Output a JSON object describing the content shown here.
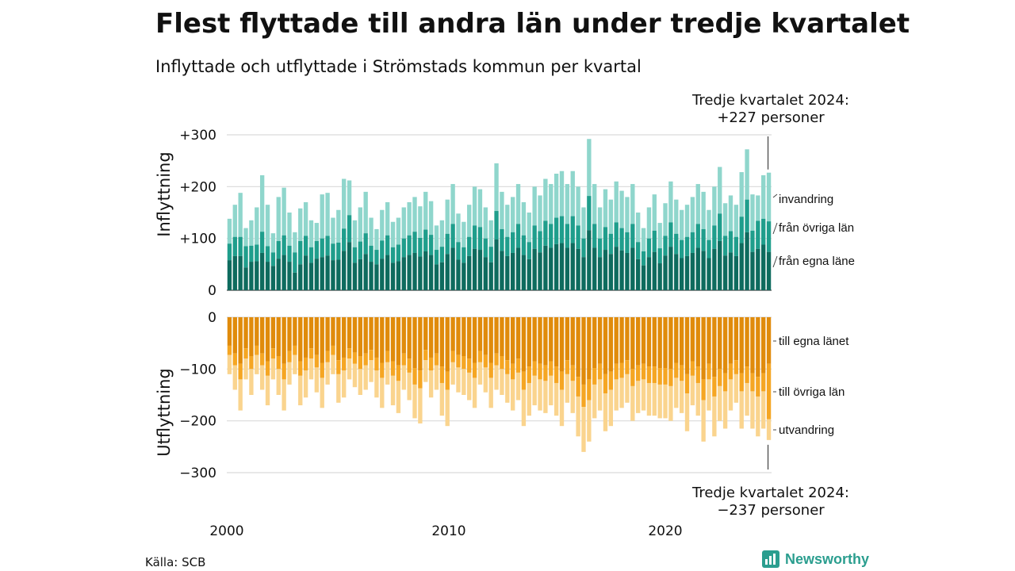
{
  "title": "Flest flyttade till andra län under tredje kvartalet",
  "subtitle": "Inflyttade och utflyttade i Strömstads kommun per kvartal",
  "source": "Källa: SCB",
  "brand": "Newsworthy",
  "annotation_top": {
    "line1": "Tredje kvartalet 2024:",
    "line2": "+227 personer"
  },
  "annotation_bottom": {
    "line1": "Tredje kvartalet 2024:",
    "line2": "−237 personer"
  },
  "chart_data": {
    "type": "bar",
    "stacked": true,
    "x_start": "2000 Q1",
    "x_end": "2024 Q3",
    "x_tick_labels": [
      "2000",
      "2010",
      "2020"
    ],
    "panels": [
      {
        "ylabel": "Inflyttning",
        "ylim": [
          0,
          300
        ],
        "yticks": [
          {
            "value": 0,
            "label": "0"
          },
          {
            "value": 100,
            "label": "+100"
          },
          {
            "value": 200,
            "label": "+200"
          },
          {
            "value": 300,
            "label": "+300"
          }
        ],
        "series": [
          {
            "name": "från egna läne",
            "color": "#0e6b5e"
          },
          {
            "name": "från övriga län",
            "color": "#1f9e8c"
          },
          {
            "name": "invandring",
            "color": "#8fd6cc"
          }
        ],
        "last_quarter_total": 227
      },
      {
        "ylabel": "Utflyttning",
        "ylim": [
          -300,
          0
        ],
        "yticks": [
          {
            "value": 0,
            "label": "0"
          },
          {
            "value": -100,
            "label": "−100"
          },
          {
            "value": -200,
            "label": "−200"
          },
          {
            "value": -300,
            "label": "−300"
          }
        ],
        "series": [
          {
            "name": "till egna länet",
            "color": "#e08b0b"
          },
          {
            "name": "till övriga län",
            "color": "#f5a623"
          },
          {
            "name": "utvandring",
            "color": "#fad48e"
          }
        ],
        "last_quarter_total": -237
      }
    ],
    "in_totals": [
      138,
      165,
      188,
      120,
      135,
      160,
      222,
      165,
      110,
      180,
      198,
      150,
      112,
      158,
      170,
      135,
      130,
      185,
      188,
      140,
      155,
      215,
      212,
      135,
      160,
      190,
      140,
      118,
      155,
      170,
      132,
      140,
      160,
      170,
      180,
      162,
      190,
      172,
      125,
      135,
      175,
      205,
      148,
      132,
      165,
      200,
      195,
      160,
      135,
      245,
      190,
      165,
      180,
      205,
      170,
      150,
      200,
      183,
      215,
      205,
      225,
      230,
      205,
      230,
      200,
      160,
      292,
      205,
      160,
      195,
      175,
      210,
      192,
      180,
      205,
      150,
      120,
      160,
      185,
      130,
      168,
      210,
      175,
      155,
      165,
      180,
      205,
      190,
      155,
      200,
      238,
      168,
      183,
      165,
      228,
      272,
      185,
      183,
      222,
      227
    ],
    "in_from_other": [
      90,
      103,
      103,
      85,
      86,
      88,
      113,
      85,
      73,
      95,
      106,
      86,
      73,
      95,
      105,
      83,
      95,
      100,
      105,
      90,
      92,
      119,
      145,
      83,
      94,
      110,
      86,
      78,
      96,
      106,
      83,
      88,
      100,
      106,
      113,
      101,
      117,
      107,
      78,
      84,
      109,
      128,
      93,
      83,
      103,
      125,
      122,
      100,
      84,
      153,
      118,
      103,
      112,
      128,
      106,
      93,
      125,
      114,
      134,
      128,
      140,
      143,
      128,
      143,
      125,
      100,
      182,
      128,
      100,
      122,
      109,
      131,
      120,
      112,
      128,
      93,
      75,
      100,
      115,
      81,
      105,
      131,
      109,
      97,
      103,
      112,
      128,
      118,
      97,
      125,
      148,
      105,
      114,
      103,
      142,
      175,
      115,
      134,
      138,
      133
    ],
    "in_own": [
      58,
      66,
      66,
      44,
      55,
      56,
      72,
      55,
      47,
      61,
      68,
      55,
      34,
      50,
      67,
      53,
      61,
      64,
      67,
      58,
      59,
      76,
      93,
      53,
      60,
      70,
      55,
      50,
      61,
      68,
      53,
      56,
      64,
      68,
      72,
      65,
      75,
      68,
      50,
      54,
      70,
      82,
      59,
      53,
      66,
      80,
      78,
      64,
      54,
      98,
      76,
      66,
      72,
      82,
      68,
      60,
      80,
      73,
      86,
      82,
      89,
      91,
      82,
      91,
      80,
      64,
      116,
      82,
      64,
      78,
      70,
      84,
      77,
      72,
      82,
      60,
      48,
      64,
      74,
      52,
      67,
      84,
      70,
      62,
      66,
      72,
      82,
      76,
      62,
      80,
      95,
      67,
      73,
      66,
      91,
      112,
      74,
      80,
      88,
      74
    ],
    "out_totals": [
      -110,
      -140,
      -180,
      -120,
      -150,
      -110,
      -140,
      -170,
      -120,
      -150,
      -180,
      -130,
      -110,
      -170,
      -155,
      -120,
      -145,
      -175,
      -130,
      -110,
      -165,
      -155,
      -120,
      -135,
      -150,
      -140,
      -125,
      -155,
      -175,
      -130,
      -170,
      -185,
      -140,
      -160,
      -195,
      -205,
      -125,
      -155,
      -140,
      -190,
      -210,
      -130,
      -145,
      -150,
      -160,
      -175,
      -130,
      -145,
      -175,
      -140,
      -150,
      -165,
      -180,
      -160,
      -210,
      -190,
      -170,
      -180,
      -185,
      -170,
      -190,
      -210,
      -165,
      -185,
      -230,
      -260,
      -240,
      -195,
      -180,
      -220,
      -210,
      -180,
      -175,
      -165,
      -200,
      -185,
      -180,
      -190,
      -190,
      -195,
      -195,
      -200,
      -175,
      -185,
      -220,
      -170,
      -190,
      -240,
      -180,
      -230,
      -200,
      -215,
      -180,
      -165,
      -215,
      -190,
      -215,
      -230,
      -215,
      -237
    ],
    "out_to_other": [
      -73,
      -93,
      -120,
      -80,
      -100,
      -73,
      -93,
      -113,
      -80,
      -100,
      -120,
      -87,
      -73,
      -113,
      -103,
      -80,
      -97,
      -117,
      -87,
      -73,
      -110,
      -103,
      -80,
      -90,
      -100,
      -93,
      -83,
      -103,
      -117,
      -87,
      -113,
      -123,
      -93,
      -107,
      -130,
      -137,
      -83,
      -103,
      -93,
      -127,
      -140,
      -87,
      -97,
      -100,
      -107,
      -117,
      -87,
      -97,
      -117,
      -93,
      -100,
      -110,
      -120,
      -107,
      -140,
      -127,
      -113,
      -120,
      -123,
      -113,
      -127,
      -140,
      -110,
      -123,
      -153,
      -173,
      -160,
      -130,
      -120,
      -147,
      -140,
      -120,
      -117,
      -110,
      -133,
      -123,
      -120,
      -127,
      -127,
      -130,
      -130,
      -133,
      -117,
      -123,
      -147,
      -113,
      -127,
      -160,
      -120,
      -153,
      -133,
      -143,
      -120,
      -110,
      -143,
      -127,
      -143,
      -153,
      -143,
      -197
    ],
    "out_to_own": [
      -55,
      -70,
      -90,
      -60,
      -75,
      -55,
      -70,
      -85,
      -60,
      -75,
      -90,
      -65,
      -55,
      -85,
      -78,
      -60,
      -73,
      -88,
      -65,
      -55,
      -83,
      -78,
      -60,
      -68,
      -75,
      -70,
      -63,
      -78,
      -88,
      -65,
      -85,
      -93,
      -70,
      -80,
      -98,
      -103,
      -63,
      -78,
      -70,
      -95,
      -105,
      -65,
      -73,
      -75,
      -80,
      -88,
      -65,
      -73,
      -88,
      -70,
      -75,
      -83,
      -90,
      -80,
      -105,
      -95,
      -85,
      -90,
      -93,
      -85,
      -95,
      -105,
      -83,
      -93,
      -115,
      -130,
      -120,
      -98,
      -90,
      -110,
      -105,
      -90,
      -88,
      -83,
      -100,
      -93,
      -90,
      -95,
      -95,
      -98,
      -98,
      -100,
      -88,
      -93,
      -110,
      -85,
      -95,
      -120,
      -90,
      -115,
      -100,
      -108,
      -90,
      -83,
      -108,
      -95,
      -108,
      -115,
      -108,
      -90
    ]
  }
}
